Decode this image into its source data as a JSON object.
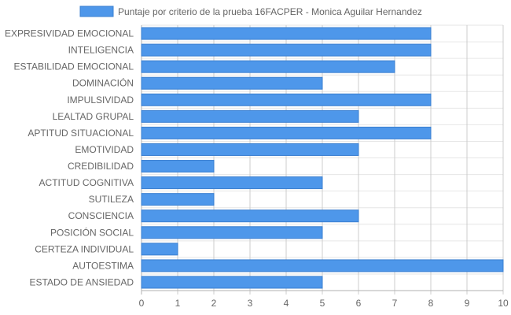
{
  "chart_data": {
    "type": "bar",
    "orientation": "horizontal",
    "categories": [
      "EXPRESIVIDAD EMOCIONAL",
      "INTELIGENCIA",
      "ESTABILIDAD EMOCIONAL",
      "DOMINACIÓN",
      "IMPULSIVIDAD",
      "LEALTAD GRUPAL",
      "APTITUD SITUACIONAL",
      "EMOTIVIDAD",
      "CREDIBILIDAD",
      "ACTITUD COGNITIVA",
      "SUTILEZA",
      "CONSCIENCIA",
      "POSICIÓN SOCIAL",
      "CERTEZA INDIVIDUAL",
      "AUTOESTIMA",
      "ESTADO DE ANSIEDAD"
    ],
    "series": [
      {
        "name": "Puntaje por criterio de la prueba 16FACPER - Monica Aguilar Hernandez",
        "values": [
          8,
          8,
          7,
          5,
          8,
          6,
          8,
          6,
          2,
          5,
          2,
          6,
          5,
          1,
          10,
          5
        ],
        "color": "#4e97ea"
      }
    ],
    "x_ticks": [
      "0",
      "1",
      "2",
      "3",
      "4",
      "5",
      "6",
      "7",
      "8",
      "9",
      "10"
    ],
    "xlim": [
      0,
      10
    ],
    "grid": true,
    "legend_position": "top-center"
  }
}
